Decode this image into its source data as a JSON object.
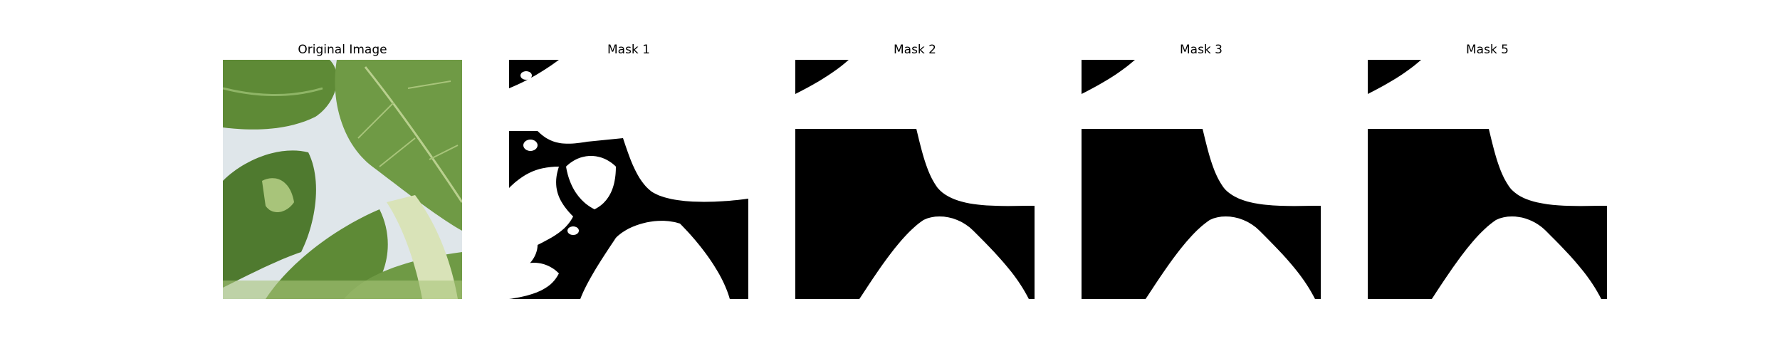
{
  "figure": {
    "panels": [
      {
        "title": "Original Image",
        "kind": "photo"
      },
      {
        "title": "Mask 1",
        "kind": "mask"
      },
      {
        "title": "Mask 2",
        "kind": "mask"
      },
      {
        "title": "Mask 3",
        "kind": "mask"
      },
      {
        "title": "Mask 5",
        "kind": "mask"
      }
    ]
  },
  "colors": {
    "background": "#ffffff",
    "mask_foreground": "#ffffff",
    "mask_background": "#000000",
    "photo_backdrop": "#dfe6ea",
    "leaf_dark": "#4f7a2f",
    "leaf_mid": "#6f9a45",
    "leaf_light": "#a8c47a",
    "stem_pale": "#d9e3b8"
  },
  "icons": {
    "photo": "leaf-photo-icon",
    "mask": "segmentation-mask-icon"
  }
}
